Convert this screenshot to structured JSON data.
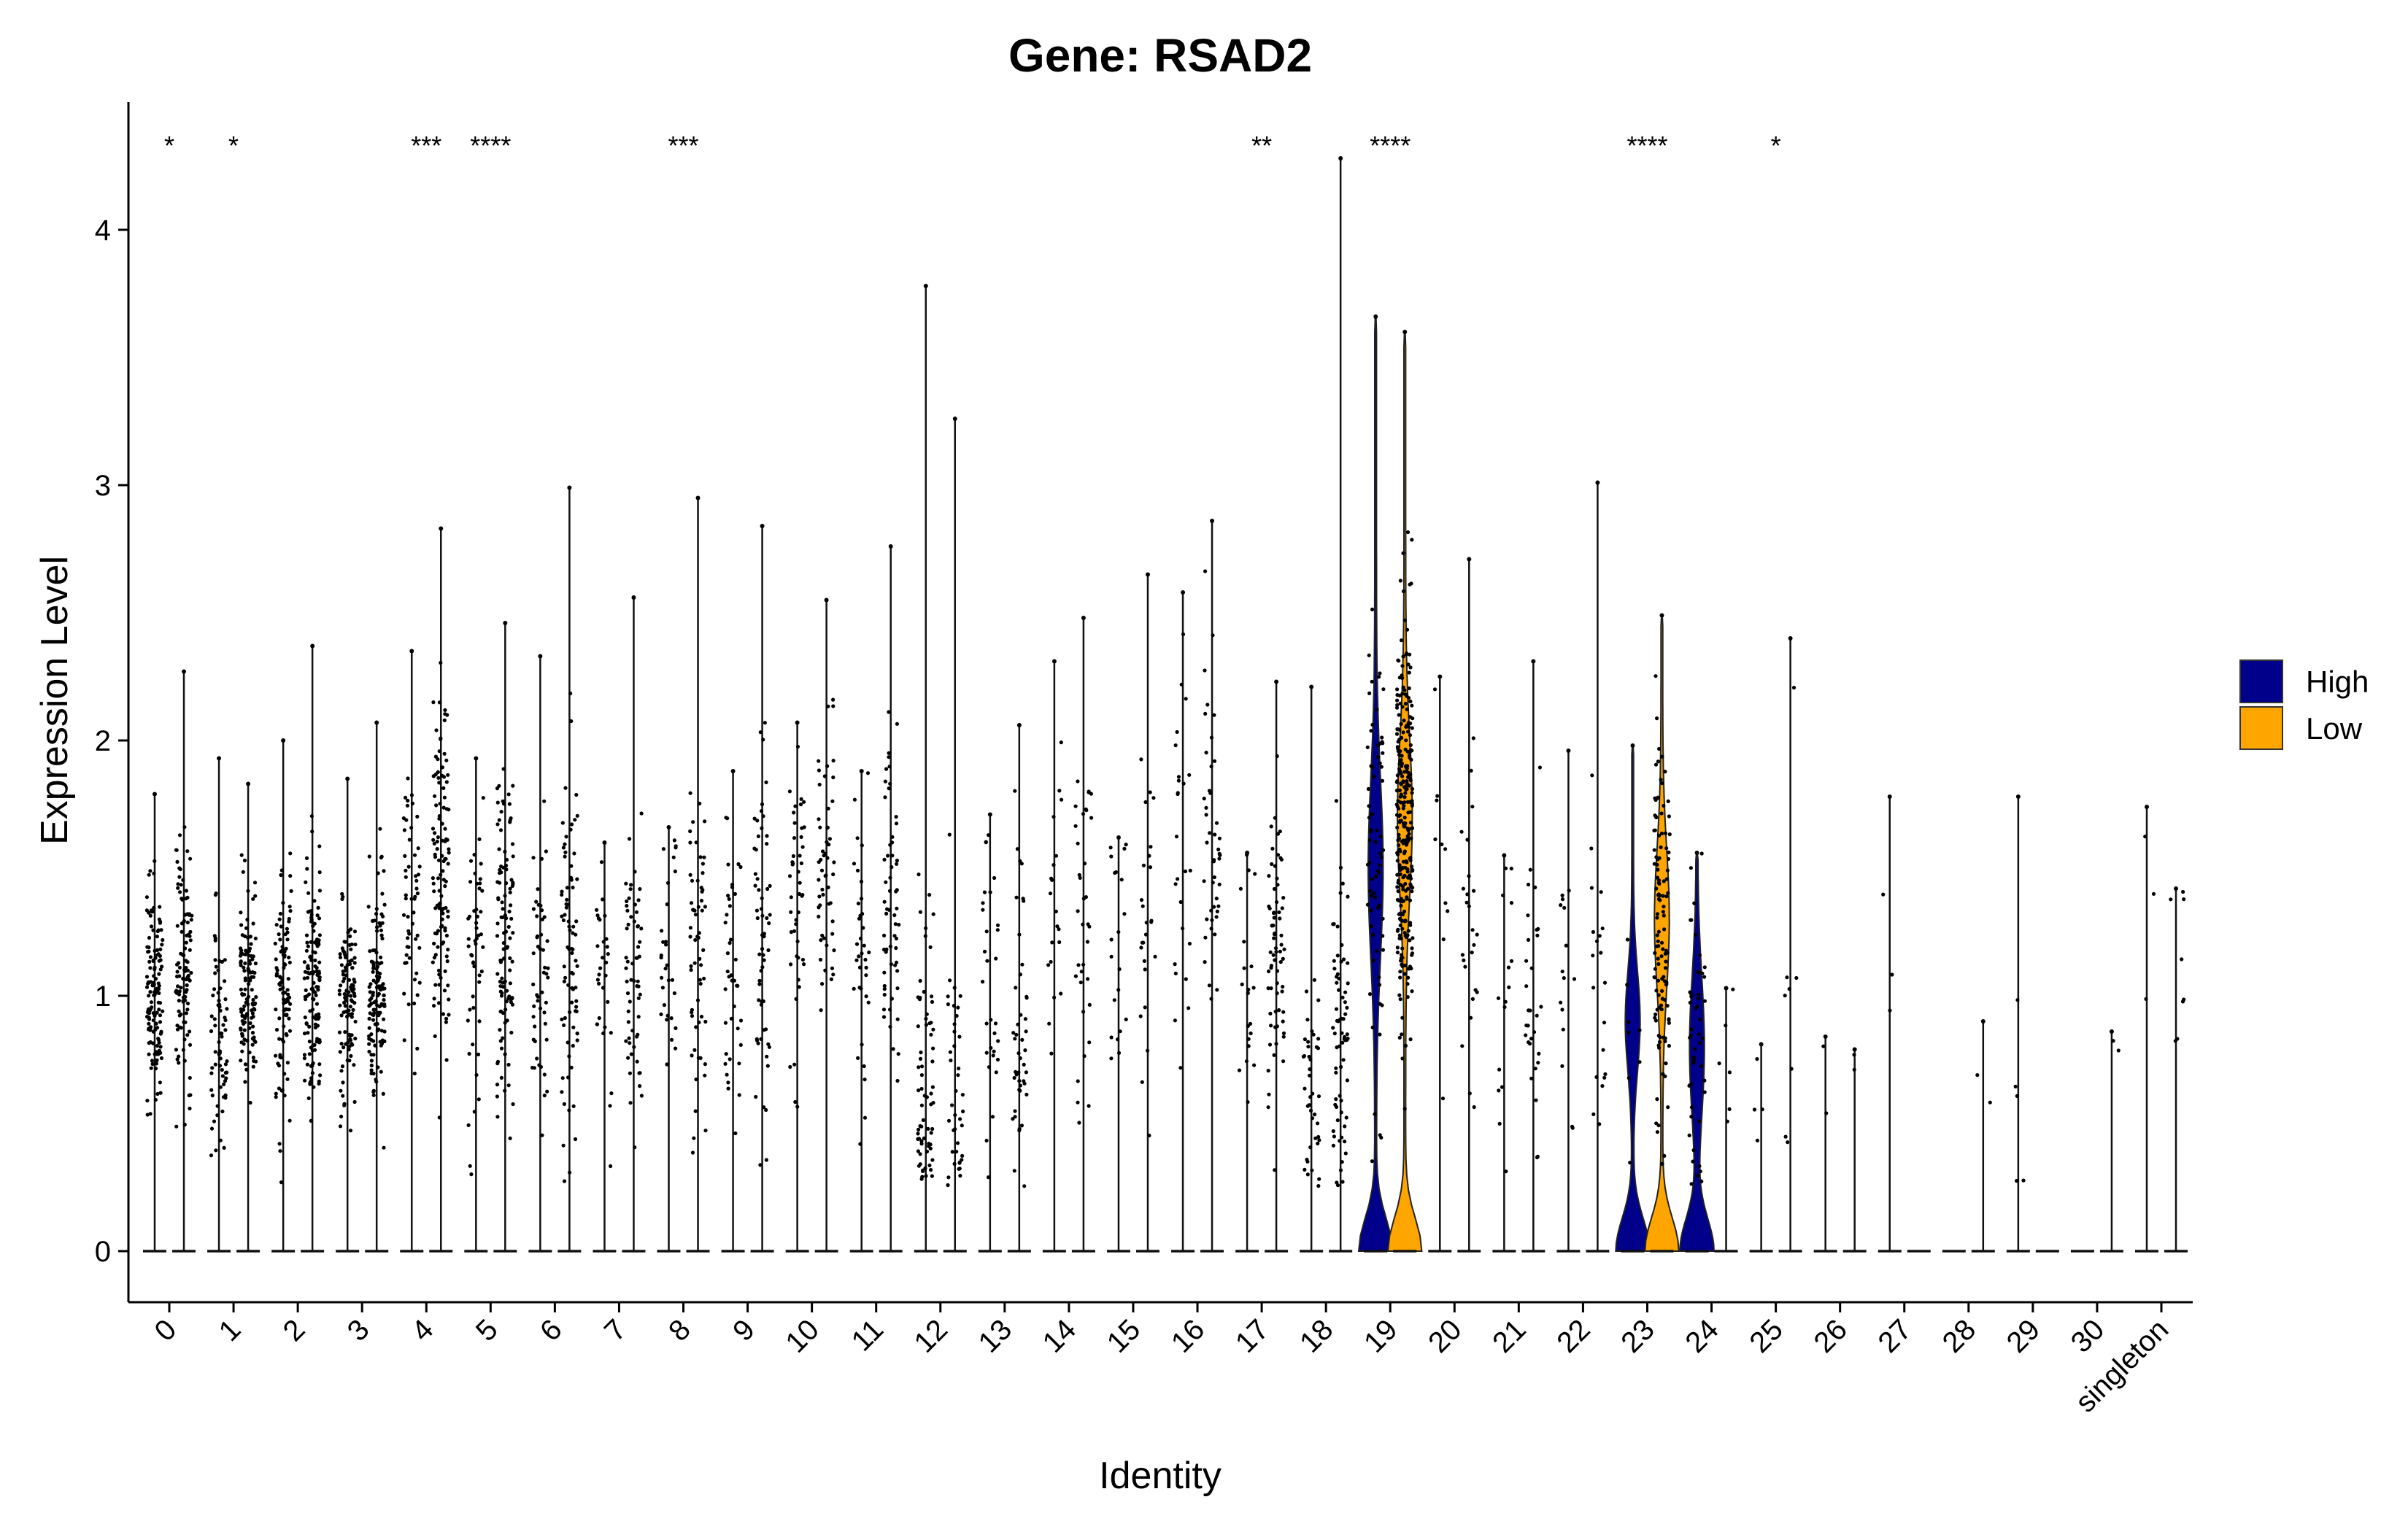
{
  "chart_data": {
    "type": "violin",
    "title": "Gene: RSAD2",
    "xlabel": "Identity",
    "ylabel": "Expression Level",
    "ylim": [
      -0.2,
      4.5
    ],
    "yticks": [
      0,
      1,
      2,
      3,
      4
    ],
    "categories": [
      "0",
      "1",
      "2",
      "3",
      "4",
      "5",
      "6",
      "7",
      "8",
      "9",
      "10",
      "11",
      "12",
      "13",
      "14",
      "15",
      "16",
      "17",
      "18",
      "19",
      "20",
      "21",
      "22",
      "23",
      "24",
      "25",
      "26",
      "27",
      "28",
      "29",
      "30",
      "singleton"
    ],
    "legend": {
      "position": "right",
      "entries": [
        {
          "name": "High",
          "color": "#00008B"
        },
        {
          "name": "Low",
          "color": "#FFA500"
        }
      ]
    },
    "significance": [
      {
        "category": "0",
        "label": "*"
      },
      {
        "category": "1",
        "label": "*"
      },
      {
        "category": "4",
        "label": "***"
      },
      {
        "category": "5",
        "label": "****"
      },
      {
        "category": "8",
        "label": "***"
      },
      {
        "category": "17",
        "label": "**"
      },
      {
        "category": "19",
        "label": "****"
      },
      {
        "category": "23",
        "label": "****"
      },
      {
        "category": "25",
        "label": "*"
      }
    ],
    "series": [
      {
        "name": "High",
        "max": [
          1.79,
          1.93,
          2.0,
          1.85,
          2.35,
          1.93,
          2.33,
          1.6,
          1.66,
          1.88,
          2.07,
          1.88,
          3.78,
          1.71,
          2.31,
          1.62,
          2.58,
          1.56,
          2.21,
          3.66,
          2.25,
          1.55,
          1.96,
          1.98,
          1.56,
          0.81,
          0.84,
          1.78,
          0.0,
          1.78,
          0.0,
          1.74
        ],
        "center": [
          1.0,
          0.9,
          1.0,
          0.95,
          1.35,
          1.15,
          1.1,
          1.05,
          1.1,
          1.1,
          1.4,
          1.15,
          0.6,
          0.95,
          1.2,
          1.2,
          1.5,
          1.1,
          0.6,
          1.5,
          1.2,
          1.0,
          1.2,
          0.9,
          0.8,
          0.6,
          0.6,
          1.3,
          0.0,
          0.6,
          0.0,
          1.4
        ],
        "spread": [
          0.2,
          0.2,
          0.25,
          0.2,
          0.25,
          0.3,
          0.3,
          0.3,
          0.3,
          0.3,
          0.35,
          0.3,
          0.4,
          0.35,
          0.35,
          0.3,
          0.35,
          0.3,
          0.3,
          0.45,
          0.35,
          0.35,
          0.4,
          0.25,
          0.35,
          0.2,
          0.2,
          0.3,
          0.0,
          0.3,
          0.0,
          0.3
        ],
        "n": [
          140,
          70,
          100,
          110,
          55,
          50,
          50,
          30,
          30,
          40,
          45,
          35,
          70,
          30,
          20,
          20,
          25,
          20,
          40,
          70,
          10,
          15,
          15,
          8,
          50,
          4,
          2,
          3,
          0,
          5,
          0,
          3
        ],
        "has_violin": [
          false,
          false,
          false,
          false,
          false,
          false,
          false,
          false,
          false,
          false,
          false,
          false,
          false,
          false,
          false,
          false,
          false,
          false,
          false,
          true,
          false,
          false,
          false,
          true,
          true,
          false,
          false,
          false,
          false,
          false,
          false,
          false
        ]
      },
      {
        "name": "Low",
        "max": [
          2.27,
          1.83,
          2.37,
          2.07,
          2.83,
          2.46,
          2.99,
          2.56,
          2.95,
          2.84,
          2.55,
          2.76,
          3.26,
          2.06,
          2.48,
          2.65,
          2.86,
          2.23,
          4.28,
          3.6,
          2.71,
          2.31,
          3.01,
          2.49,
          1.03,
          2.4,
          0.79,
          0.0,
          0.9,
          0.0,
          0.86,
          1.42
        ],
        "center": [
          1.1,
          1.05,
          1.05,
          1.0,
          1.5,
          1.2,
          1.2,
          1.1,
          1.15,
          1.2,
          1.5,
          1.3,
          0.7,
          0.9,
          1.3,
          1.3,
          1.55,
          1.2,
          0.8,
          1.7,
          1.3,
          1.1,
          1.1,
          1.3,
          0.7,
          1.0,
          0.5,
          0.0,
          0.6,
          0.0,
          0.6,
          1.1
        ],
        "spread": [
          0.25,
          0.2,
          0.25,
          0.22,
          0.35,
          0.3,
          0.35,
          0.3,
          0.35,
          0.35,
          0.3,
          0.35,
          0.45,
          0.35,
          0.4,
          0.35,
          0.35,
          0.3,
          0.4,
          0.4,
          0.35,
          0.35,
          0.4,
          0.35,
          0.2,
          0.4,
          0.2,
          0.0,
          0.2,
          0.0,
          0.2,
          0.25
        ],
        "n": [
          110,
          120,
          140,
          130,
          120,
          110,
          80,
          60,
          60,
          60,
          55,
          60,
          40,
          45,
          35,
          25,
          45,
          70,
          70,
          300,
          25,
          30,
          20,
          120,
          6,
          8,
          2,
          0,
          2,
          0,
          2,
          8
        ],
        "has_violin": [
          false,
          false,
          false,
          false,
          false,
          false,
          false,
          false,
          false,
          false,
          false,
          false,
          false,
          false,
          false,
          false,
          false,
          false,
          false,
          true,
          false,
          false,
          false,
          true,
          false,
          false,
          false,
          false,
          false,
          false,
          false,
          false
        ]
      }
    ]
  }
}
